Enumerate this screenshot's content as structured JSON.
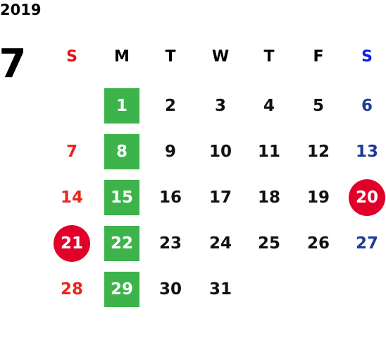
{
  "year": "2019",
  "month": "7",
  "weekdays": [
    "S",
    "M",
    "T",
    "W",
    "T",
    "F",
    "S"
  ],
  "weeks": [
    [
      null,
      {
        "day": 1,
        "mark": "box"
      },
      2,
      3,
      4,
      5,
      6
    ],
    [
      7,
      {
        "day": 8,
        "mark": "box"
      },
      9,
      10,
      11,
      12,
      13
    ],
    [
      14,
      {
        "day": 15,
        "mark": "box"
      },
      16,
      17,
      18,
      19,
      {
        "day": 20,
        "mark": "circle"
      }
    ],
    [
      {
        "day": 21,
        "mark": "circle"
      },
      {
        "day": 22,
        "mark": "box"
      },
      23,
      24,
      25,
      26,
      27
    ],
    [
      28,
      {
        "day": 29,
        "mark": "box"
      },
      30,
      31,
      null,
      null,
      null
    ]
  ]
}
